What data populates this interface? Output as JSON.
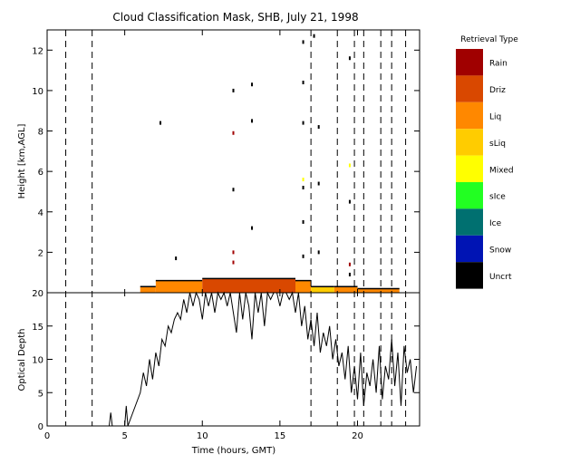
{
  "chart_data": {
    "title": "Cloud Classification Mask, SHB, July 21, 1998",
    "type": "multi-panel",
    "xlabel": "Time (hours, GMT)",
    "xlim": [
      0,
      24
    ],
    "x_ticks": [
      0,
      5,
      10,
      15,
      20
    ],
    "vertical_dashed_lines_hours": [
      1.2,
      2.9,
      17.0,
      18.7,
      19.8,
      20.4,
      21.5,
      22.2,
      23.1
    ],
    "panels": [
      {
        "type": "heatmap",
        "ylabel": "Height [km,AGL]",
        "ylim": [
          0,
          13
        ],
        "y_ticks": [
          2,
          4,
          6,
          8,
          10,
          12
        ],
        "cloud_base_layer": [
          {
            "class": "Liq",
            "x_start": 6.0,
            "x_end": 7.0,
            "bottom": 0.0,
            "top": 0.3
          },
          {
            "class": "Liq",
            "x_start": 7.0,
            "x_end": 10.0,
            "bottom": 0.0,
            "top": 0.6
          },
          {
            "class": "Driz",
            "x_start": 10.0,
            "x_end": 16.0,
            "bottom": 0.0,
            "top": 0.7
          },
          {
            "class": "Liq",
            "x_start": 16.0,
            "x_end": 17.0,
            "bottom": 0.0,
            "top": 0.6
          },
          {
            "class": "sLiq",
            "x_start": 17.0,
            "x_end": 18.5,
            "bottom": 0.0,
            "top": 0.3
          },
          {
            "class": "Liq",
            "x_start": 18.5,
            "x_end": 20.0,
            "bottom": 0.0,
            "top": 0.3
          },
          {
            "class": "Liq",
            "x_start": 20.0,
            "x_end": 22.7,
            "bottom": 0.0,
            "top": 0.2
          }
        ],
        "scattered_points": [
          {
            "x": 7.3,
            "y": 8.4,
            "class": "Uncrt"
          },
          {
            "x": 8.3,
            "y": 1.7,
            "class": "Uncrt"
          },
          {
            "x": 12.0,
            "y": 10.0,
            "class": "Uncrt"
          },
          {
            "x": 12.0,
            "y": 7.9,
            "class": "Rain"
          },
          {
            "x": 12.0,
            "y": 5.1,
            "class": "Uncrt"
          },
          {
            "x": 12.0,
            "y": 2.0,
            "class": "Rain"
          },
          {
            "x": 12.0,
            "y": 1.5,
            "class": "Rain"
          },
          {
            "x": 13.2,
            "y": 10.3,
            "class": "Uncrt"
          },
          {
            "x": 13.2,
            "y": 8.5,
            "class": "Uncrt"
          },
          {
            "x": 13.2,
            "y": 3.2,
            "class": "Uncrt"
          },
          {
            "x": 16.5,
            "y": 12.4,
            "class": "Uncrt"
          },
          {
            "x": 16.5,
            "y": 10.4,
            "class": "Uncrt"
          },
          {
            "x": 16.5,
            "y": 8.4,
            "class": "Uncrt"
          },
          {
            "x": 16.5,
            "y": 5.6,
            "class": "Mixed"
          },
          {
            "x": 16.5,
            "y": 5.2,
            "class": "Uncrt"
          },
          {
            "x": 16.5,
            "y": 3.5,
            "class": "Uncrt"
          },
          {
            "x": 16.5,
            "y": 1.8,
            "class": "Uncrt"
          },
          {
            "x": 17.2,
            "y": 12.7,
            "class": "Uncrt"
          },
          {
            "x": 17.5,
            "y": 8.2,
            "class": "Uncrt"
          },
          {
            "x": 17.5,
            "y": 5.4,
            "class": "Uncrt"
          },
          {
            "x": 17.5,
            "y": 2.0,
            "class": "Uncrt"
          },
          {
            "x": 19.5,
            "y": 11.6,
            "class": "Uncrt"
          },
          {
            "x": 19.5,
            "y": 6.3,
            "class": "Mixed"
          },
          {
            "x": 19.5,
            "y": 4.5,
            "class": "Uncrt"
          },
          {
            "x": 19.5,
            "y": 1.4,
            "class": "Rain"
          },
          {
            "x": 19.5,
            "y": 0.9,
            "class": "Uncrt"
          }
        ]
      },
      {
        "type": "line",
        "ylabel": "Optical Depth",
        "ylim": [
          0,
          20
        ],
        "y_ticks": [
          0,
          5,
          10,
          15,
          20
        ],
        "series": [
          {
            "x": [
              4.0,
              4.1,
              4.2,
              5.0,
              5.1,
              5.2,
              6.0,
              6.2,
              6.4,
              6.6,
              6.8,
              7.0,
              7.2,
              7.4,
              7.6,
              7.8,
              8.0,
              8.2,
              8.4,
              8.6,
              8.8,
              9.0,
              9.2,
              9.4,
              9.6,
              9.8,
              10.0,
              10.2,
              10.4,
              10.6,
              10.8,
              11.0,
              11.2,
              11.4,
              11.6,
              11.8,
              12.0,
              12.2,
              12.4,
              12.6,
              12.8,
              13.0,
              13.2,
              13.4,
              13.6,
              13.8,
              14.0,
              14.2,
              14.4,
              14.6,
              14.8,
              15.0,
              15.2,
              15.4,
              15.6,
              15.8,
              16.0,
              16.2,
              16.4,
              16.6,
              16.8,
              17.0,
              17.2,
              17.4,
              17.6,
              17.8,
              18.0,
              18.2,
              18.4,
              18.6,
              18.8,
              19.0,
              19.2,
              19.4,
              19.6,
              19.8,
              20.0,
              20.2,
              20.4,
              20.6,
              20.8,
              21.0,
              21.2,
              21.4,
              21.6,
              21.8,
              22.0,
              22.2,
              22.4,
              22.6,
              22.8,
              23.0,
              23.2,
              23.4,
              23.6,
              23.8
            ],
            "values": [
              0.0,
              2.0,
              0.0,
              0.0,
              3.0,
              0.0,
              5.0,
              8.0,
              6.0,
              10.0,
              7.0,
              11.0,
              9.0,
              13.0,
              12.0,
              15.0,
              14.0,
              16.0,
              17.0,
              16.0,
              19.0,
              17.0,
              20.0,
              18.0,
              20.0,
              19.0,
              16.0,
              20.0,
              18.0,
              20.0,
              17.0,
              20.0,
              19.0,
              20.0,
              18.0,
              20.0,
              17.0,
              14.0,
              20.0,
              16.0,
              20.0,
              18.0,
              13.0,
              20.0,
              17.0,
              20.0,
              15.0,
              20.0,
              19.0,
              20.0,
              20.0,
              18.0,
              20.0,
              20.0,
              19.0,
              20.0,
              17.0,
              20.0,
              15.0,
              18.0,
              13.0,
              16.0,
              12.0,
              17.0,
              11.0,
              14.0,
              12.0,
              15.0,
              10.0,
              13.0,
              9.0,
              11.0,
              7.0,
              12.0,
              5.0,
              9.0,
              4.0,
              11.0,
              3.0,
              8.0,
              6.0,
              10.0,
              5.0,
              12.0,
              4.0,
              9.0,
              7.0,
              13.0,
              6.0,
              11.0,
              3.0,
              12.0,
              8.0,
              10.0,
              5.0,
              9.0
            ]
          }
        ]
      }
    ],
    "legend": {
      "title": "Retrieval Type",
      "placement": "right",
      "items": [
        {
          "label": "Rain",
          "color": "#a00000"
        },
        {
          "label": "Driz",
          "color": "#d94800"
        },
        {
          "label": "Liq",
          "color": "#ff8800"
        },
        {
          "label": "sLiq",
          "color": "#ffcc00"
        },
        {
          "label": "Mixed",
          "color": "#ffff00"
        },
        {
          "label": "sIce",
          "color": "#22ff22"
        },
        {
          "label": "Ice",
          "color": "#007070"
        },
        {
          "label": "Snow",
          "color": "#0014b4"
        },
        {
          "label": "Uncrt",
          "color": "#000000"
        }
      ]
    }
  }
}
